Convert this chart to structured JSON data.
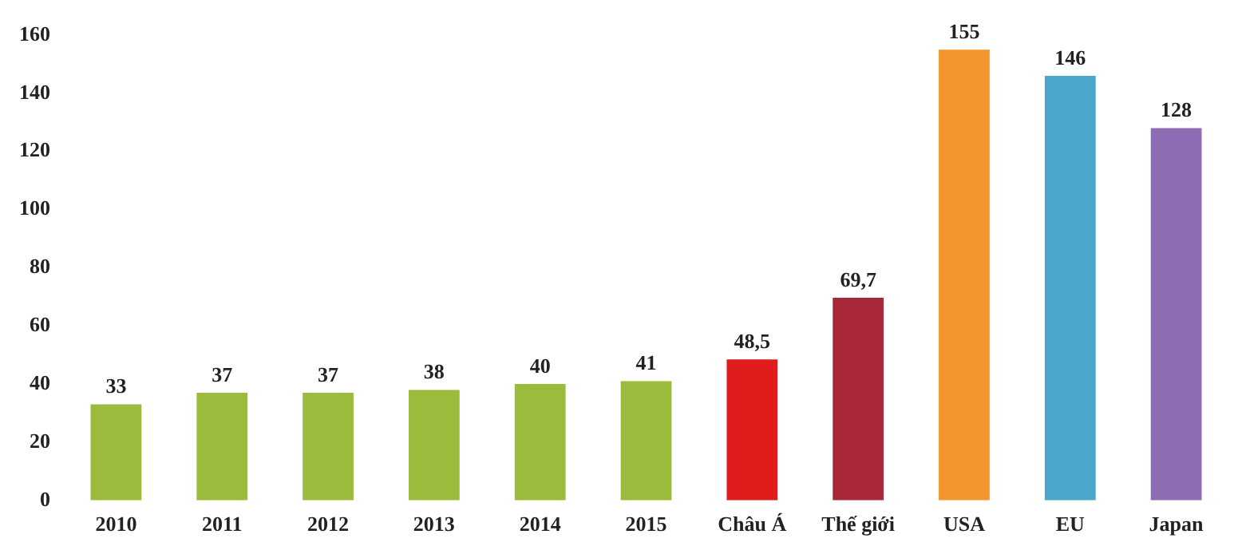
{
  "chart_data": {
    "type": "bar",
    "categories": [
      "2010",
      "2011",
      "2012",
      "2013",
      "2014",
      "2015",
      "Châu Á",
      "Thế giới",
      "USA",
      "EU",
      "Japan"
    ],
    "values": [
      33,
      37,
      37,
      38,
      40,
      41,
      48.5,
      69.7,
      155,
      146,
      128
    ],
    "colors": [
      "#9bbb3c",
      "#9bbb3c",
      "#9bbb3c",
      "#9bbb3c",
      "#9bbb3c",
      "#9bbb3c",
      "#e01c1c",
      "#a8283a",
      "#f3942c",
      "#4ba6cc",
      "#8c6cb2"
    ],
    "value_labels": [
      "33",
      "37",
      "37",
      "38",
      "40",
      "41",
      "48,5",
      "69,7",
      "155",
      "146",
      "128"
    ],
    "ylim": [
      0,
      160
    ],
    "yticks": [
      0,
      20,
      40,
      60,
      80,
      100,
      120,
      140,
      160
    ],
    "grid": false,
    "legend": false
  }
}
